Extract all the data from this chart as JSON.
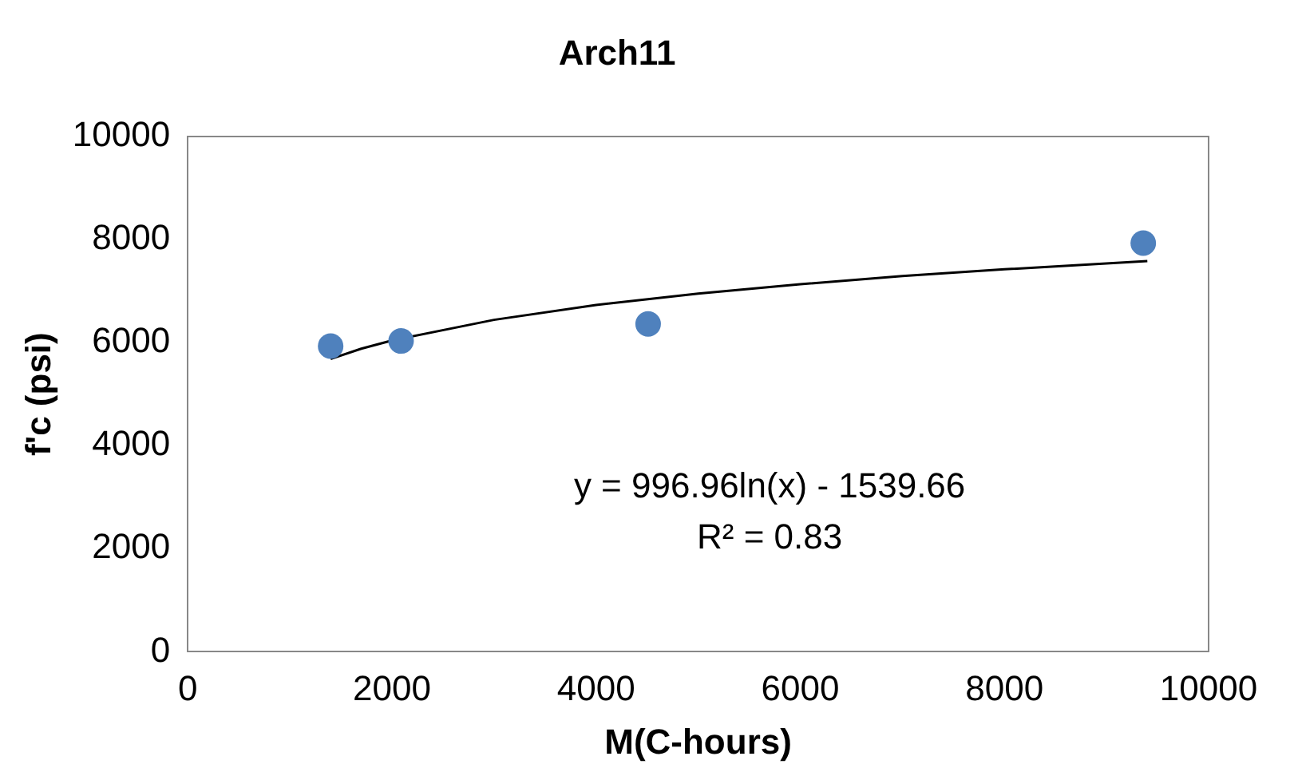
{
  "chart_data": {
    "type": "scatter",
    "title": "Arch11",
    "xlabel": "M(C-hours)",
    "ylabel": "f'c (psi)",
    "xlim": [
      0,
      10000
    ],
    "xticks": [
      0,
      2000,
      4000,
      6000,
      8000,
      10000
    ],
    "ylim": [
      0,
      10000
    ],
    "yticks": [
      0,
      2000,
      4000,
      6000,
      8000,
      10000
    ],
    "grid": false,
    "legend": false,
    "marker": "circle",
    "series": [
      {
        "color": "#4f81bd",
        "x": [
          1400,
          2090,
          4510,
          9360
        ],
        "values": [
          5930,
          6030,
          6360,
          7930
        ]
      },
      {
        "type": "line",
        "color": "#000000",
        "marker": "none",
        "x": [
          1400,
          1700,
          2000,
          3000,
          4000,
          5000,
          6000,
          7000,
          8000,
          9400
        ],
        "values": [
          5680,
          5880,
          6040,
          6440,
          6730,
          6950,
          7130,
          7290,
          7420,
          7580
        ]
      }
    ],
    "annotations": [
      "y = 996.96ln(x) - 1539.66",
      "R² = 0.83"
    ]
  }
}
